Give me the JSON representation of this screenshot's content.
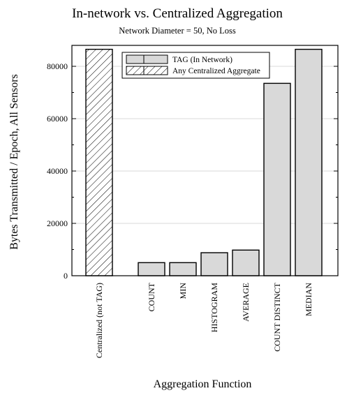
{
  "chart_data": {
    "type": "bar",
    "title": "In-network vs. Centralized Aggregation",
    "subtitle": "Network Diameter = 50, No Loss",
    "xlabel": "Aggregation Function",
    "ylabel": "Bytes Transmitted / Epoch, All Sensors",
    "ylim": [
      0,
      88000
    ],
    "yticks": [
      0,
      20000,
      40000,
      60000,
      80000
    ],
    "grid": true,
    "legend_position": "top",
    "categories": [
      "Centralized (not TAG)",
      "COUNT",
      "MIN",
      "HISTOGRAM",
      "AVERAGE",
      "COUNT DISTINCT",
      "MEDIAN"
    ],
    "series": [
      {
        "name": "TAG (In Network)",
        "pattern": "solid",
        "color": "#d9d9d9",
        "values": [
          null,
          5000,
          5000,
          8800,
          9800,
          73500,
          86500
        ]
      },
      {
        "name": "Any Centralized Aggregate",
        "pattern": "hatched",
        "color": "#ffffff",
        "values": [
          86500,
          null,
          null,
          null,
          null,
          null,
          null
        ]
      }
    ]
  }
}
